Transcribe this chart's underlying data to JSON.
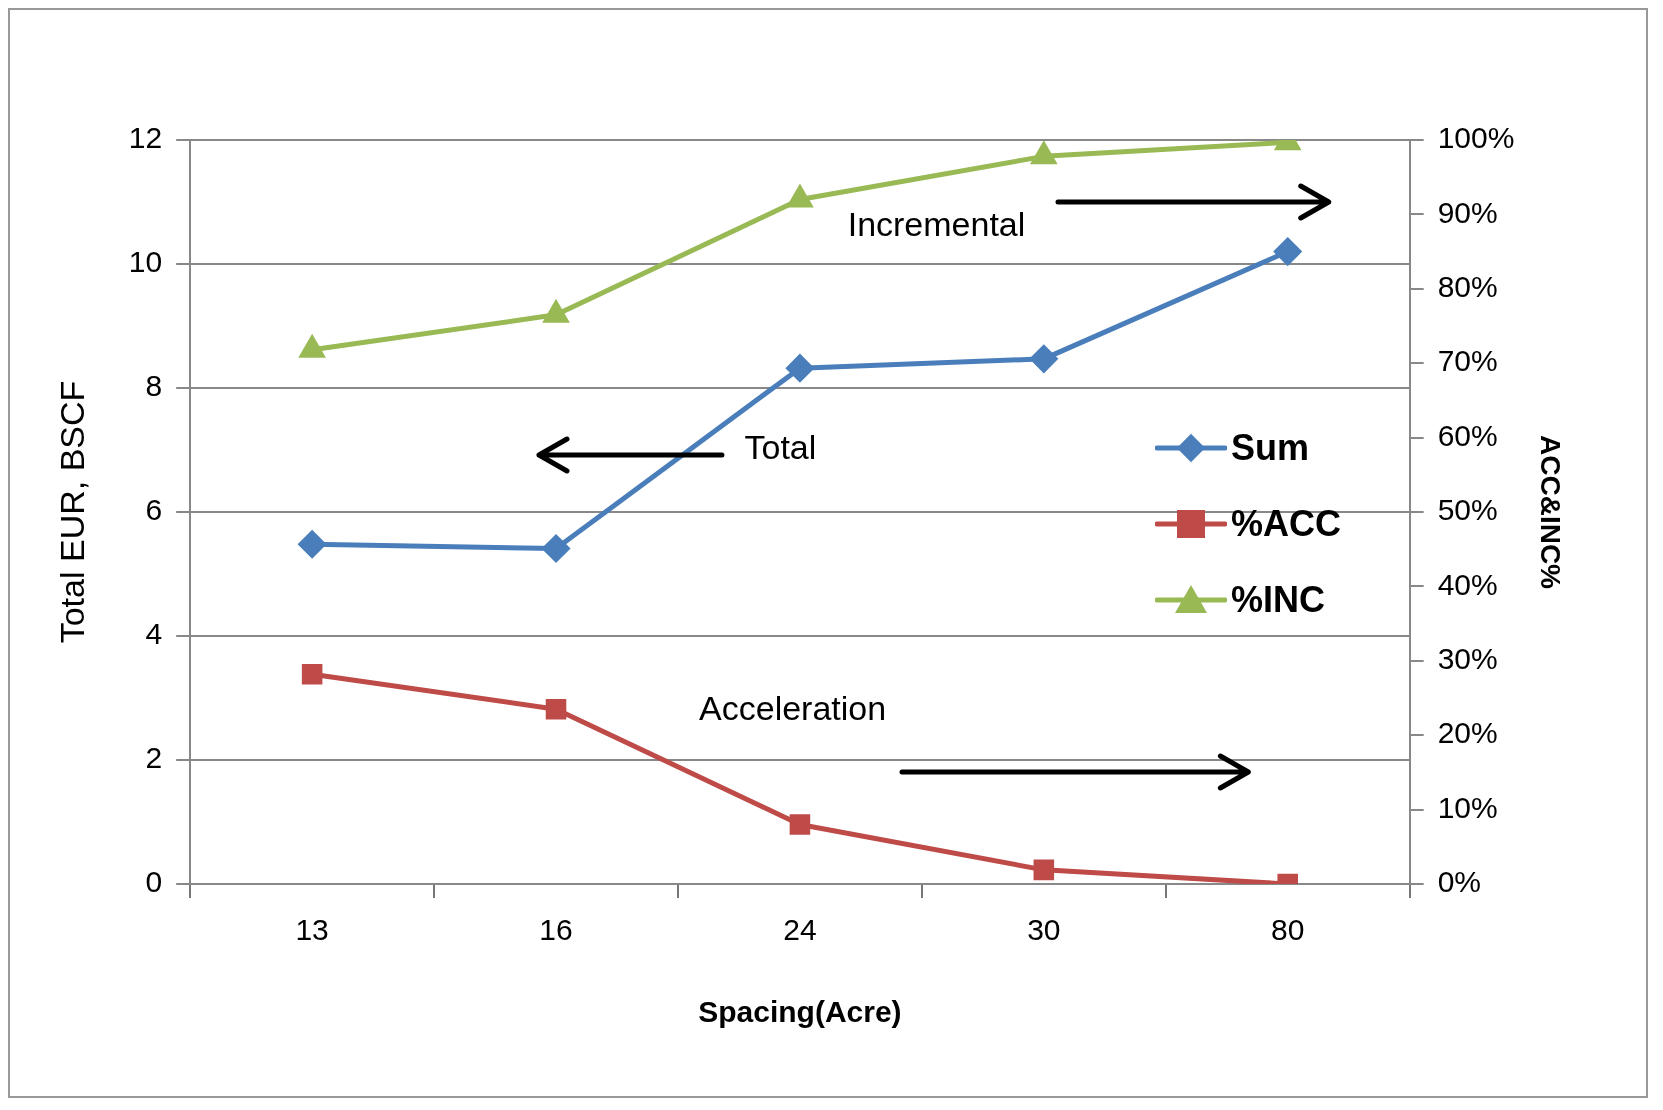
{
  "chart_data": {
    "type": "line",
    "xlabel": "Spacing(Acre)",
    "ylabel": "Total EUR, BSCF",
    "y2label": "ACC&INC%",
    "categories": [
      "13",
      "16",
      "24",
      "30",
      "80"
    ],
    "series": [
      {
        "name": "Sum",
        "color": "#4a7ebb",
        "marker": "diamond",
        "values": [
          5.48,
          5.41,
          8.32,
          8.47,
          10.2
        ]
      },
      {
        "name": "%ACC",
        "color": "#be4b48",
        "marker": "square",
        "axis": "y2",
        "values": [
          28.2,
          23.5,
          8.0,
          1.9,
          0
        ]
      },
      {
        "name": "%INC",
        "color": "#98b954",
        "marker": "triangle",
        "axis": "y2",
        "values": [
          71.8,
          76.5,
          92.0,
          97.8,
          99.7
        ]
      }
    ],
    "ylim": [
      0,
      12
    ],
    "yticks": [
      0,
      2,
      4,
      6,
      8,
      10,
      12
    ],
    "y2lim": [
      0,
      100
    ],
    "y2ticks": [
      {
        "value": 0,
        "label": "0%"
      },
      {
        "value": 10,
        "label": "10%"
      },
      {
        "value": 20,
        "label": "20%"
      },
      {
        "value": 30,
        "label": "30%"
      },
      {
        "value": 40,
        "label": "40%"
      },
      {
        "value": 50,
        "label": "50%"
      },
      {
        "value": 60,
        "label": "60%"
      },
      {
        "value": 70,
        "label": "70%"
      },
      {
        "value": 80,
        "label": "80%"
      },
      {
        "value": 90,
        "label": "90%"
      },
      {
        "value": 100,
        "label": "100%"
      }
    ],
    "annotations": [
      "Incremental",
      "Total",
      "Acceleration"
    ],
    "grid": "y",
    "legend": "right",
    "line_style": "solid"
  }
}
